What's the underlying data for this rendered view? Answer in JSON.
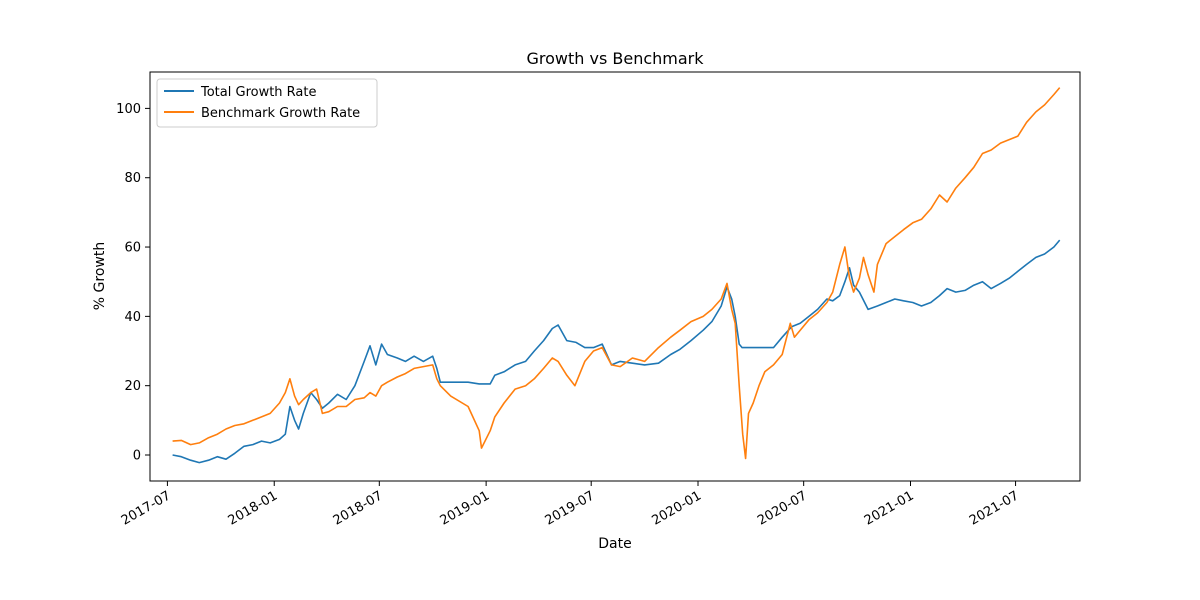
{
  "chart_data": {
    "type": "line",
    "title": "Growth vs Benchmark",
    "xlabel": "Date",
    "ylabel": "% Growth",
    "x_axis_type": "date",
    "xlim": [
      "2017-06-01",
      "2021-10-20"
    ],
    "ylim": [
      -7.5,
      110.5
    ],
    "x_ticks": [
      "2017-07",
      "2018-01",
      "2018-07",
      "2019-01",
      "2019-07",
      "2020-01",
      "2020-07",
      "2021-01",
      "2021-07"
    ],
    "y_ticks": [
      0,
      20,
      40,
      60,
      80,
      100
    ],
    "grid": false,
    "legend": {
      "position": "top-left"
    },
    "series": [
      {
        "name": "Total Growth Rate",
        "color": "#1f77b4",
        "points": [
          [
            "2017-07-10",
            0
          ],
          [
            "2017-07-25",
            -0.5
          ],
          [
            "2017-08-10",
            -1.5
          ],
          [
            "2017-08-25",
            -2.2
          ],
          [
            "2017-09-10",
            -1.5
          ],
          [
            "2017-09-25",
            -0.5
          ],
          [
            "2017-10-10",
            -1.2
          ],
          [
            "2017-10-25",
            0.5
          ],
          [
            "2017-11-10",
            2.5
          ],
          [
            "2017-11-25",
            3
          ],
          [
            "2017-12-10",
            4
          ],
          [
            "2017-12-25",
            3.5
          ],
          [
            "2018-01-10",
            4.5
          ],
          [
            "2018-01-20",
            6
          ],
          [
            "2018-01-28",
            14
          ],
          [
            "2018-02-05",
            10
          ],
          [
            "2018-02-12",
            7.5
          ],
          [
            "2018-02-20",
            12
          ],
          [
            "2018-03-05",
            18
          ],
          [
            "2018-03-15",
            16
          ],
          [
            "2018-03-25",
            13.5
          ],
          [
            "2018-04-05",
            15
          ],
          [
            "2018-04-20",
            17.5
          ],
          [
            "2018-05-05",
            16
          ],
          [
            "2018-05-20",
            20
          ],
          [
            "2018-06-05",
            27
          ],
          [
            "2018-06-15",
            31.5
          ],
          [
            "2018-06-25",
            26
          ],
          [
            "2018-07-05",
            32
          ],
          [
            "2018-07-15",
            29
          ],
          [
            "2018-08-01",
            28
          ],
          [
            "2018-08-15",
            27
          ],
          [
            "2018-08-30",
            28.5
          ],
          [
            "2018-09-15",
            27
          ],
          [
            "2018-10-01",
            28.5
          ],
          [
            "2018-10-08",
            25
          ],
          [
            "2018-10-14",
            21
          ],
          [
            "2018-11-01",
            21
          ],
          [
            "2018-12-01",
            21
          ],
          [
            "2018-12-20",
            20.5
          ],
          [
            "2019-01-08",
            20.5
          ],
          [
            "2019-01-16",
            23
          ],
          [
            "2019-02-01",
            24
          ],
          [
            "2019-02-20",
            26
          ],
          [
            "2019-03-10",
            27
          ],
          [
            "2019-03-25",
            30
          ],
          [
            "2019-04-10",
            33
          ],
          [
            "2019-04-25",
            36.5
          ],
          [
            "2019-05-05",
            37.5
          ],
          [
            "2019-05-20",
            33
          ],
          [
            "2019-06-05",
            32.5
          ],
          [
            "2019-06-20",
            31
          ],
          [
            "2019-07-05",
            31
          ],
          [
            "2019-07-20",
            32
          ],
          [
            "2019-08-05",
            26
          ],
          [
            "2019-08-20",
            27
          ],
          [
            "2019-09-10",
            26.5
          ],
          [
            "2019-10-01",
            26
          ],
          [
            "2019-10-25",
            26.5
          ],
          [
            "2019-11-15",
            29
          ],
          [
            "2019-12-01",
            30.5
          ],
          [
            "2019-12-20",
            33
          ],
          [
            "2020-01-10",
            36
          ],
          [
            "2020-01-25",
            38.5
          ],
          [
            "2020-02-10",
            43
          ],
          [
            "2020-02-20",
            48.5
          ],
          [
            "2020-02-28",
            45
          ],
          [
            "2020-03-05",
            40
          ],
          [
            "2020-03-12",
            32
          ],
          [
            "2020-03-17",
            31
          ],
          [
            "2020-04-01",
            31
          ],
          [
            "2020-04-20",
            31
          ],
          [
            "2020-05-10",
            31
          ],
          [
            "2020-05-25",
            34
          ],
          [
            "2020-06-10",
            37
          ],
          [
            "2020-06-25",
            38
          ],
          [
            "2020-07-10",
            40
          ],
          [
            "2020-07-25",
            42
          ],
          [
            "2020-08-10",
            45
          ],
          [
            "2020-08-20",
            44.5
          ],
          [
            "2020-09-01",
            46
          ],
          [
            "2020-09-10",
            50
          ],
          [
            "2020-09-18",
            54
          ],
          [
            "2020-09-25",
            49
          ],
          [
            "2020-10-05",
            47
          ],
          [
            "2020-10-20",
            42
          ],
          [
            "2020-11-05",
            43
          ],
          [
            "2020-11-20",
            44
          ],
          [
            "2020-12-05",
            45
          ],
          [
            "2020-12-20",
            44.5
          ],
          [
            "2021-01-05",
            44
          ],
          [
            "2021-01-20",
            43
          ],
          [
            "2021-02-05",
            44
          ],
          [
            "2021-02-20",
            46
          ],
          [
            "2021-03-05",
            48
          ],
          [
            "2021-03-20",
            47
          ],
          [
            "2021-04-05",
            47.5
          ],
          [
            "2021-04-20",
            49
          ],
          [
            "2021-05-05",
            50
          ],
          [
            "2021-05-20",
            48
          ],
          [
            "2021-06-05",
            49.5
          ],
          [
            "2021-06-20",
            51
          ],
          [
            "2021-07-05",
            53
          ],
          [
            "2021-07-20",
            55
          ],
          [
            "2021-08-05",
            57
          ],
          [
            "2021-08-20",
            58
          ],
          [
            "2021-09-05",
            60
          ],
          [
            "2021-09-15",
            62
          ]
        ]
      },
      {
        "name": "Benchmark Growth Rate",
        "color": "#ff7f0e",
        "points": [
          [
            "2017-07-10",
            4
          ],
          [
            "2017-07-25",
            4.2
          ],
          [
            "2017-08-10",
            3
          ],
          [
            "2017-08-25",
            3.5
          ],
          [
            "2017-09-10",
            5
          ],
          [
            "2017-09-25",
            6
          ],
          [
            "2017-10-10",
            7.5
          ],
          [
            "2017-10-25",
            8.5
          ],
          [
            "2017-11-10",
            9
          ],
          [
            "2017-11-25",
            10
          ],
          [
            "2017-12-10",
            11
          ],
          [
            "2017-12-25",
            12
          ],
          [
            "2018-01-10",
            15
          ],
          [
            "2018-01-20",
            18
          ],
          [
            "2018-01-28",
            22
          ],
          [
            "2018-02-05",
            17
          ],
          [
            "2018-02-12",
            14.5
          ],
          [
            "2018-02-20",
            16
          ],
          [
            "2018-03-05",
            18
          ],
          [
            "2018-03-15",
            19
          ],
          [
            "2018-03-25",
            12
          ],
          [
            "2018-04-05",
            12.5
          ],
          [
            "2018-04-20",
            14
          ],
          [
            "2018-05-05",
            14
          ],
          [
            "2018-05-20",
            16
          ],
          [
            "2018-06-05",
            16.5
          ],
          [
            "2018-06-15",
            18
          ],
          [
            "2018-06-25",
            17
          ],
          [
            "2018-07-05",
            20
          ],
          [
            "2018-07-15",
            21
          ],
          [
            "2018-08-01",
            22.5
          ],
          [
            "2018-08-15",
            23.5
          ],
          [
            "2018-08-30",
            25
          ],
          [
            "2018-09-15",
            25.5
          ],
          [
            "2018-10-01",
            26
          ],
          [
            "2018-10-08",
            22
          ],
          [
            "2018-10-14",
            20
          ],
          [
            "2018-11-01",
            17
          ],
          [
            "2018-12-01",
            14
          ],
          [
            "2018-12-20",
            7
          ],
          [
            "2018-12-24",
            2
          ],
          [
            "2019-01-08",
            7
          ],
          [
            "2019-01-16",
            11
          ],
          [
            "2019-02-01",
            15
          ],
          [
            "2019-02-20",
            19
          ],
          [
            "2019-03-10",
            20
          ],
          [
            "2019-03-25",
            22
          ],
          [
            "2019-04-10",
            25
          ],
          [
            "2019-04-25",
            28
          ],
          [
            "2019-05-05",
            27
          ],
          [
            "2019-05-20",
            23
          ],
          [
            "2019-06-03",
            20
          ],
          [
            "2019-06-20",
            27
          ],
          [
            "2019-07-05",
            30
          ],
          [
            "2019-07-20",
            31
          ],
          [
            "2019-08-05",
            26
          ],
          [
            "2019-08-20",
            25.5
          ],
          [
            "2019-09-10",
            28
          ],
          [
            "2019-10-01",
            27
          ],
          [
            "2019-10-25",
            31
          ],
          [
            "2019-11-15",
            34
          ],
          [
            "2019-12-01",
            36
          ],
          [
            "2019-12-20",
            38.5
          ],
          [
            "2020-01-10",
            40
          ],
          [
            "2020-01-25",
            42
          ],
          [
            "2020-02-10",
            45
          ],
          [
            "2020-02-20",
            49.5
          ],
          [
            "2020-02-28",
            42
          ],
          [
            "2020-03-05",
            38
          ],
          [
            "2020-03-12",
            20
          ],
          [
            "2020-03-18",
            6
          ],
          [
            "2020-03-23",
            -1
          ],
          [
            "2020-03-28",
            12
          ],
          [
            "2020-04-05",
            15
          ],
          [
            "2020-04-15",
            20
          ],
          [
            "2020-04-25",
            24
          ],
          [
            "2020-05-10",
            26
          ],
          [
            "2020-05-25",
            29
          ],
          [
            "2020-06-08",
            38
          ],
          [
            "2020-06-15",
            34
          ],
          [
            "2020-06-25",
            36
          ],
          [
            "2020-07-10",
            39
          ],
          [
            "2020-07-25",
            41
          ],
          [
            "2020-08-10",
            44
          ],
          [
            "2020-08-20",
            47
          ],
          [
            "2020-09-01",
            55
          ],
          [
            "2020-09-10",
            60
          ],
          [
            "2020-09-18",
            51
          ],
          [
            "2020-09-25",
            47
          ],
          [
            "2020-10-05",
            51
          ],
          [
            "2020-10-12",
            57
          ],
          [
            "2020-10-20",
            52
          ],
          [
            "2020-10-30",
            47
          ],
          [
            "2020-11-05",
            55
          ],
          [
            "2020-11-20",
            61
          ],
          [
            "2020-12-05",
            63
          ],
          [
            "2020-12-20",
            65
          ],
          [
            "2021-01-05",
            67
          ],
          [
            "2021-01-20",
            68
          ],
          [
            "2021-02-05",
            71
          ],
          [
            "2021-02-20",
            75
          ],
          [
            "2021-03-05",
            73
          ],
          [
            "2021-03-20",
            77
          ],
          [
            "2021-04-05",
            80
          ],
          [
            "2021-04-20",
            83
          ],
          [
            "2021-05-05",
            87
          ],
          [
            "2021-05-20",
            88
          ],
          [
            "2021-06-05",
            90
          ],
          [
            "2021-06-20",
            91
          ],
          [
            "2021-07-05",
            92
          ],
          [
            "2021-07-20",
            96
          ],
          [
            "2021-08-05",
            99
          ],
          [
            "2021-08-20",
            101
          ],
          [
            "2021-09-05",
            104
          ],
          [
            "2021-09-15",
            106
          ]
        ]
      }
    ]
  }
}
